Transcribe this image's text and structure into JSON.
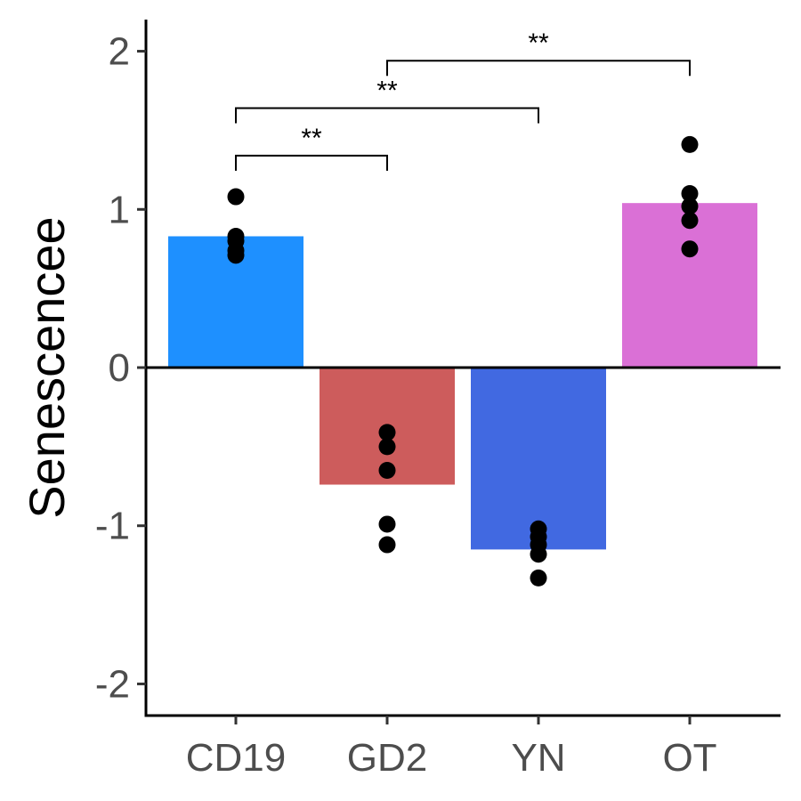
{
  "chart_data": {
    "type": "bar",
    "title": "",
    "xlabel": "",
    "ylabel": "Senescencee",
    "ylim": [
      -2.2,
      2.2
    ],
    "yticks": [
      -2,
      -1,
      0,
      1,
      2
    ],
    "ytick_labels": [
      "-2",
      "-1",
      "0",
      "1",
      "2"
    ],
    "categories": [
      "CD19",
      "GD2",
      "YN",
      "OT"
    ],
    "values": [
      0.83,
      -0.74,
      -1.15,
      1.04
    ],
    "colors": [
      "#1E90FF",
      "#CD5C5C",
      "#4169E1",
      "#DA70D6"
    ],
    "points": [
      [
        1.08,
        0.83,
        0.8,
        0.74,
        0.71
      ],
      [
        -0.41,
        -0.5,
        -0.65,
        -0.99,
        -1.12
      ],
      [
        -1.02,
        -1.07,
        -1.12,
        -1.18,
        -1.33
      ],
      [
        1.41,
        1.1,
        1.02,
        0.93,
        0.75
      ]
    ],
    "point_color": "#000000",
    "zero_line": true,
    "grid": false,
    "legend": "none",
    "comparisons": [
      {
        "from": "CD19",
        "to": "GD2",
        "label": "**",
        "y": 1.34
      },
      {
        "from": "CD19",
        "to": "YN",
        "label": "**",
        "y": 1.64
      },
      {
        "from": "GD2",
        "to": "OT",
        "label": "**",
        "y": 1.94
      }
    ]
  }
}
